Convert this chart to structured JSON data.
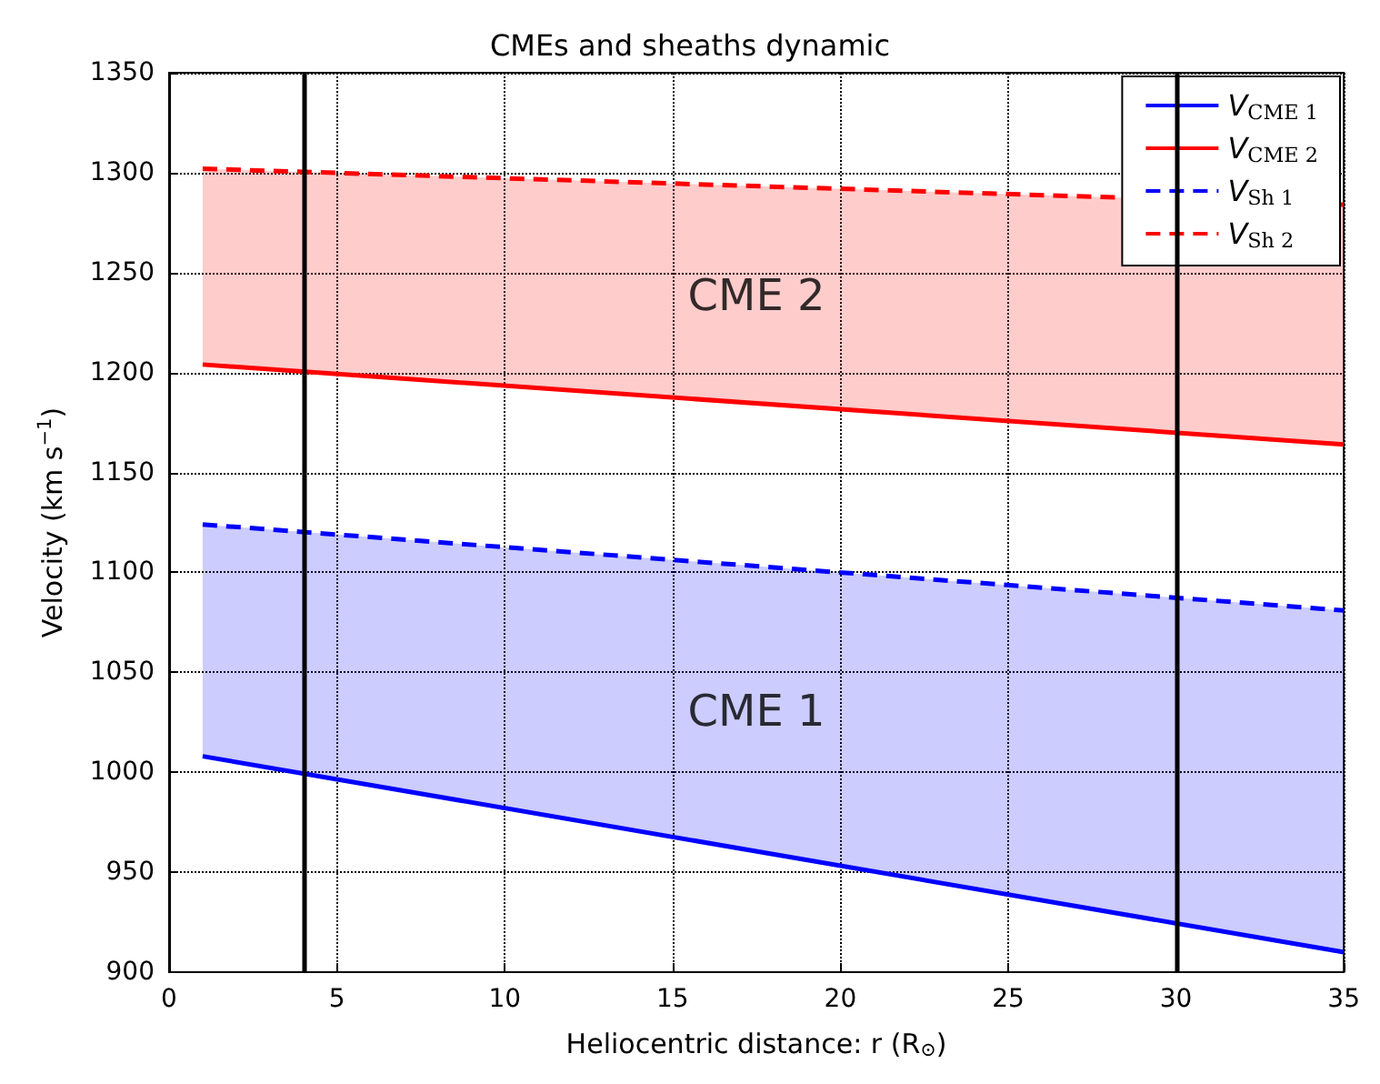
{
  "chart_data": {
    "type": "line",
    "title": "CMEs and sheaths dynamic",
    "xlabel": "Heliocentric distance: r (R$_{⊙}$)",
    "ylabel": "Velocity (km s$^{−1}$)",
    "x": [
      1,
      35
    ],
    "series": [
      {
        "name": "V$_{CME 1}$",
        "color": "#0000ff",
        "values": [
          1008,
          910
        ],
        "line_style": "solid",
        "lower": [
          1008,
          910
        ],
        "upper": [
          1124,
          1081
        ]
      },
      {
        "name": "V$_{CME 2}$",
        "color": "#ff0000",
        "values": [
          1204,
          1164
        ],
        "line_style": "solid",
        "lower": [
          1204,
          1164
        ],
        "upper": [
          1302,
          1284
        ]
      },
      {
        "name": "V$_{Sh 1}$",
        "color": "#0000ff",
        "values": [
          1124,
          1081
        ],
        "line_style": "dashed"
      },
      {
        "name": "V$_{Sh 2}$",
        "color": "#ff0000",
        "values": [
          1302,
          1284
        ],
        "line_style": "dashed"
      }
    ],
    "xlim": [
      0,
      35
    ],
    "xticks": [
      0,
      5,
      10,
      15,
      20,
      25,
      30,
      35
    ],
    "ylim": [
      900,
      1350
    ],
    "yticks": [
      900,
      950,
      1000,
      1050,
      1100,
      1150,
      1200,
      1250,
      1300,
      1350
    ],
    "ref_lines": [
      {
        "axis": "x",
        "value": 4,
        "color": "#000000"
      },
      {
        "axis": "x",
        "value": 30,
        "color": "#000000"
      }
    ],
    "annotations": [
      "CME 1",
      "CME 2"
    ],
    "grid": true,
    "legend": "top right",
    "marker": "none"
  }
}
